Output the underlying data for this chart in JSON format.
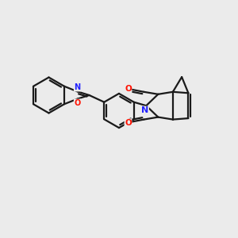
{
  "background_color": "#ebebeb",
  "bond_color": "#1a1a1a",
  "N_color": "#2222ff",
  "O_color": "#ff1100",
  "line_width": 1.6,
  "figsize": [
    3.0,
    3.0
  ],
  "dpi": 100,
  "xlim": [
    0,
    10
  ],
  "ylim": [
    0,
    10
  ]
}
